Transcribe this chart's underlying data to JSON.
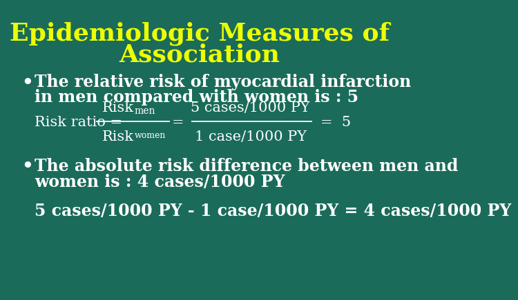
{
  "title_line1": "Epidemiologic Measures of",
  "title_line2": "Association",
  "title_color": "#EEFF00",
  "title_fontsize": 26,
  "bg_color": "#1A6B5A",
  "bullet1_line1": "The relative risk of myocardial infarction",
  "bullet1_line2": "in men compared with women is : 5",
  "bullet_color": "#FFFFFF",
  "bullet_fontsize": 17,
  "formula_color": "#FFFFFF",
  "formula_fontsize": 15,
  "formula_sub_fontsize": 10,
  "bullet2_line1": "The absolute risk difference between men and",
  "bullet2_line2": "women is : 4 cases/1000 PY",
  "bottom_text": "5 cases/1000 PY - 1 case/1000 PY = 4 cases/1000 PY",
  "serif_font": "DejaVu Serif"
}
